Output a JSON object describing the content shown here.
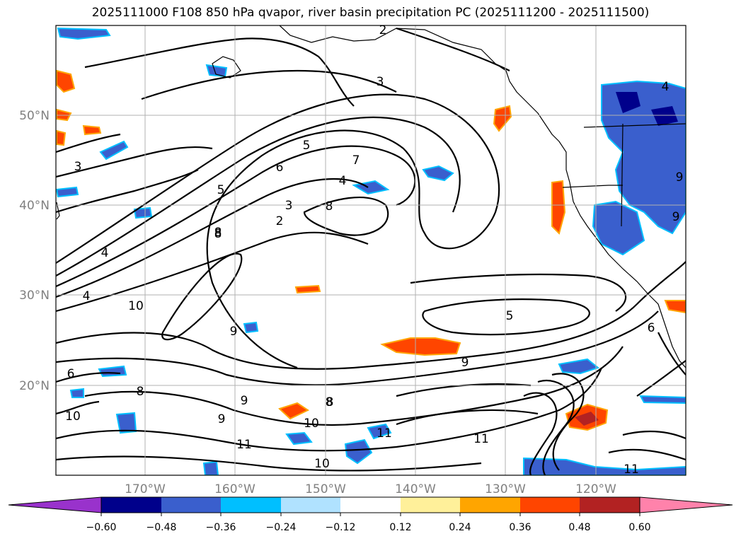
{
  "title": "2025111000 F108 850 hPa qvapor, river basin precipitation PC (2025111200 - 2025111500)",
  "map": {
    "lon_labels": [
      "170°W",
      "160°W",
      "150°W",
      "140°W",
      "130°W",
      "120°W"
    ],
    "lat_labels": [
      "50°N",
      "40°N",
      "30°N",
      "20°N"
    ],
    "label_color": "#808080",
    "contour_color": "#000000",
    "coast_color": "#000000",
    "grid": true,
    "contour_labels": [
      "2",
      "3",
      "3",
      "4",
      "5",
      "5",
      "6",
      "7",
      "8",
      "8",
      "8",
      "2",
      "3",
      "4",
      "5",
      "4",
      "10",
      "9",
      "6",
      "8",
      "9",
      "9",
      "10",
      "8",
      "9",
      "8",
      "10",
      "11",
      "11",
      "10",
      "11",
      "11",
      "9",
      "6",
      "4",
      "9"
    ]
  },
  "colorbar": {
    "ticks": [
      "−0.60",
      "−0.48",
      "−0.36",
      "−0.24",
      "−0.12",
      "0.12",
      "0.24",
      "0.36",
      "0.48",
      "0.60"
    ],
    "colors": [
      "#9932cc",
      "#00008b",
      "#3a5fcd",
      "#00bfff",
      "#b0e2ff",
      "#ffffff",
      "#fff09a",
      "#ffa500",
      "#ff4500",
      "#b22222",
      "#ff82ab"
    ]
  }
}
